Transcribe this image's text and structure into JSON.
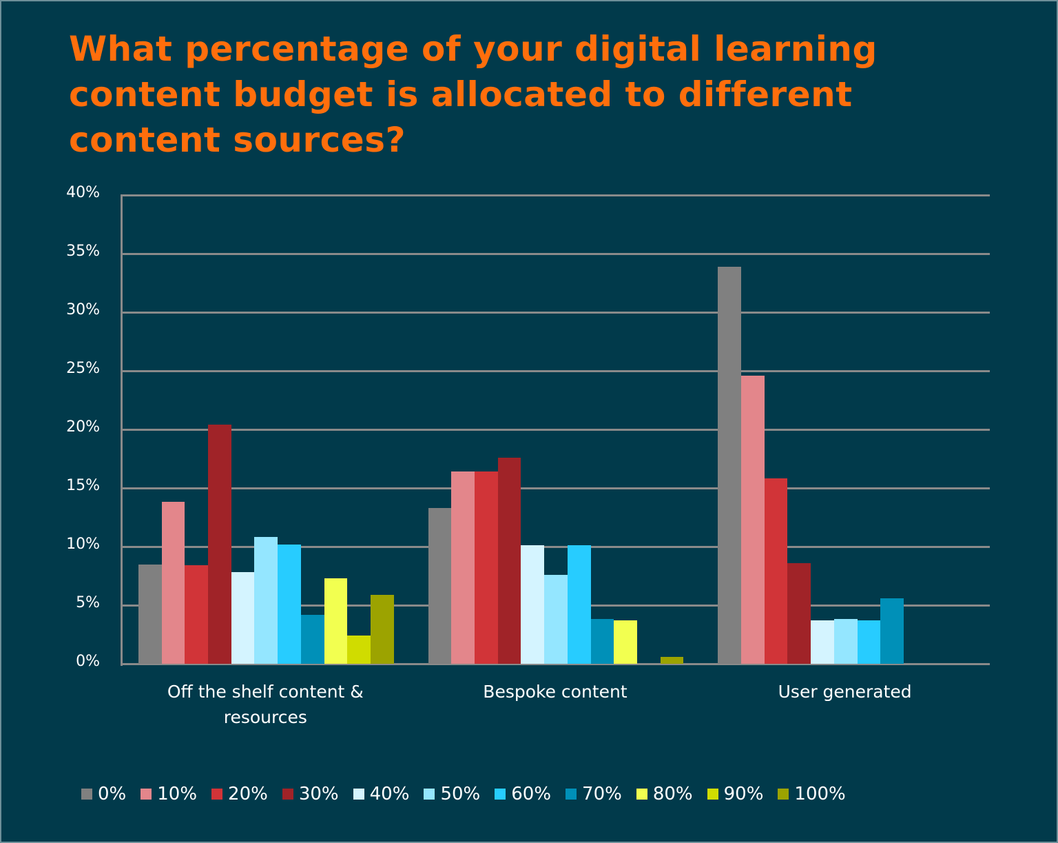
{
  "title": "What percentage of your digital learning content budget is allocated to different content sources?",
  "chart_data": {
    "type": "bar",
    "title": "What percentage of your digital learning content budget is allocated to different content sources?",
    "xlabel": "",
    "ylabel": "",
    "ylim": [
      0,
      40
    ],
    "yticks": [
      "0%",
      "5%",
      "10%",
      "15%",
      "20%",
      "25%",
      "30%",
      "35%",
      "40%"
    ],
    "grid": true,
    "legend_position": "bottom",
    "categories": [
      "Off the shelf content & resources",
      "Bespoke content",
      "User generated"
    ],
    "series": [
      {
        "name": "0%",
        "color": "#808080",
        "values": [
          8.5,
          13.3,
          33.9
        ]
      },
      {
        "name": "10%",
        "color": "#e3868b",
        "values": [
          13.8,
          16.4,
          24.6
        ]
      },
      {
        "name": "20%",
        "color": "#d13438",
        "values": [
          8.4,
          16.4,
          15.8
        ]
      },
      {
        "name": "30%",
        "color": "#a02328",
        "values": [
          20.4,
          17.6,
          8.6
        ]
      },
      {
        "name": "40%",
        "color": "#d4f4ff",
        "values": [
          7.8,
          10.1,
          3.7
        ]
      },
      {
        "name": "50%",
        "color": "#94e6ff",
        "values": [
          10.8,
          7.6,
          3.8
        ]
      },
      {
        "name": "60%",
        "color": "#27ccff",
        "values": [
          10.2,
          10.1,
          3.7
        ]
      },
      {
        "name": "70%",
        "color": "#0090b8",
        "values": [
          4.2,
          3.8,
          5.6
        ]
      },
      {
        "name": "80%",
        "color": "#f2ff50",
        "values": [
          7.3,
          3.7,
          0
        ]
      },
      {
        "name": "90%",
        "color": "#d0dc00",
        "values": [
          2.4,
          0,
          0
        ]
      },
      {
        "name": "100%",
        "color": "#9ca300",
        "values": [
          5.9,
          0.6,
          0
        ]
      }
    ]
  },
  "x_labels": [
    "Off the shelf content &\nresources",
    "Bespoke content",
    "User generated"
  ],
  "colors": {
    "background": "#013a4b",
    "title": "#ff6e0c",
    "grid": "#8a8a8a",
    "text": "#ffffff"
  }
}
